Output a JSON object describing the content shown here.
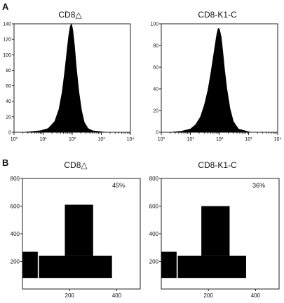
{
  "chart_data": [
    {
      "type": "area",
      "panel": "A",
      "title": "CD8△",
      "x_scale": "log",
      "xlim": [
        1,
        10000
      ],
      "ylim": [
        0,
        140
      ],
      "x_tick_labels": [
        "10⁰",
        "10¹",
        "10²",
        "10³",
        "10⁴"
      ],
      "y_tick_labels": [
        "0",
        "20",
        "40",
        "60",
        "80",
        "100",
        "120",
        "140"
      ],
      "series": [
        {
          "x": [
            2,
            4,
            8,
            15,
            25,
            35,
            45,
            55,
            65,
            75,
            85,
            95,
            105,
            120,
            140,
            170,
            210,
            260,
            350,
            500,
            1500
          ],
          "values": [
            0,
            1,
            2,
            5,
            14,
            30,
            52,
            78,
            103,
            124,
            137,
            140,
            132,
            112,
            82,
            52,
            28,
            13,
            5,
            2,
            0
          ]
        }
      ]
    },
    {
      "type": "area",
      "panel": "A",
      "title": "CD8-K1-C",
      "x_scale": "log",
      "xlim": [
        1,
        10000
      ],
      "ylim": [
        0,
        100
      ],
      "x_tick_labels": [
        "10⁰",
        "10¹",
        "10²",
        "10³",
        "10⁴"
      ],
      "y_tick_labels": [
        "0",
        "20",
        "40",
        "60",
        "80",
        "100"
      ],
      "series": [
        {
          "x": [
            2,
            5,
            10,
            15,
            22,
            30,
            40,
            50,
            60,
            70,
            80,
            90,
            100,
            115,
            130,
            150,
            180,
            230,
            300,
            450,
            1200
          ],
          "values": [
            0,
            1,
            3,
            7,
            14,
            25,
            39,
            54,
            68,
            80,
            90,
            96,
            95,
            88,
            75,
            58,
            40,
            22,
            10,
            3,
            0
          ]
        }
      ]
    },
    {
      "type": "area",
      "panel": "B",
      "title": "CD8△",
      "annotation": "45%",
      "xlim": [
        0,
        500
      ],
      "ylim": [
        0,
        800
      ],
      "x_tick_labels": [
        "200",
        "400"
      ],
      "y_tick_labels": [
        "200",
        "400",
        "600",
        "800"
      ],
      "regions": [
        {
          "x": [
            0,
            65
          ],
          "y": [
            80,
            270
          ]
        },
        {
          "x": [
            70,
            380
          ],
          "y": [
            80,
            240
          ]
        },
        {
          "x": [
            180,
            300
          ],
          "y": [
            240,
            610
          ]
        }
      ]
    },
    {
      "type": "area",
      "panel": "B",
      "title": "CD8-K1-C",
      "annotation": "36%",
      "xlim": [
        0,
        500
      ],
      "ylim": [
        0,
        800
      ],
      "x_tick_labels": [
        "200",
        "400"
      ],
      "y_tick_labels": [
        "200",
        "400",
        "600",
        "800"
      ],
      "regions": [
        {
          "x": [
            0,
            65
          ],
          "y": [
            80,
            270
          ]
        },
        {
          "x": [
            70,
            360
          ],
          "y": [
            80,
            240
          ]
        },
        {
          "x": [
            170,
            290
          ],
          "y": [
            240,
            600
          ]
        }
      ]
    }
  ],
  "panel_labels": {
    "a": "A",
    "b": "B"
  }
}
